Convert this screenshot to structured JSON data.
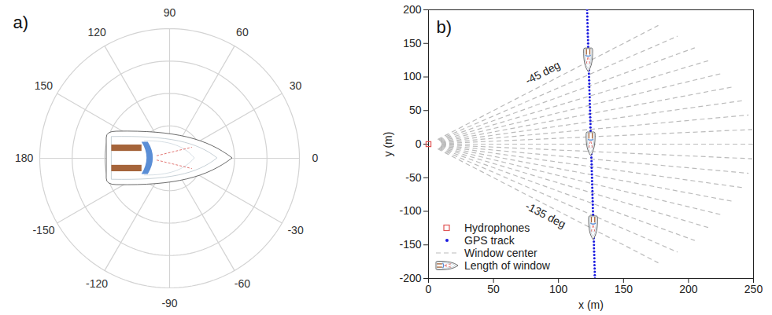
{
  "chart_data": [
    {
      "type": "polar",
      "title": "a)",
      "rlim": [
        0,
        1
      ],
      "rticks": [
        0.25,
        0.5,
        0.75,
        1
      ],
      "angle_ticks": [
        0,
        30,
        60,
        90,
        120,
        150,
        180,
        -150,
        -120,
        -90,
        -60,
        -30
      ],
      "grid": true,
      "marker": "boat"
    },
    {
      "type": "scatter",
      "title": "b)",
      "xlabel": "x (m)",
      "ylabel": "y (m)",
      "xlim": [
        0,
        250
      ],
      "ylim": [
        -200,
        200
      ],
      "xticks": [
        0,
        50,
        100,
        150,
        200,
        250
      ],
      "yticks": [
        -200,
        -150,
        -100,
        -50,
        0,
        50,
        100,
        150,
        200
      ],
      "legend": "lower left",
      "series": [
        {
          "name": "Hydrophones",
          "color": "#e05555",
          "marker": "square",
          "x": [
            0
          ],
          "y": [
            0
          ]
        },
        {
          "name": "GPS track",
          "color": "#1a1ae0",
          "marker": "dot",
          "x": [
            122.0,
            122.1,
            122.2,
            122.2,
            122.3,
            122.4,
            122.5,
            122.5,
            122.6,
            122.7,
            122.8,
            122.8,
            122.9,
            123.0,
            123.1,
            123.1,
            123.2,
            123.3,
            123.4,
            123.4,
            123.5,
            123.6,
            123.7,
            123.7,
            123.8,
            123.9,
            124.0,
            124.0,
            124.1,
            124.2,
            124.3,
            124.3,
            124.4,
            124.5,
            124.6,
            124.6,
            124.7,
            124.8,
            124.9,
            124.9,
            125.0,
            125.1,
            125.2,
            125.2,
            125.3,
            125.4,
            125.5,
            125.5,
            125.6,
            125.7,
            125.8,
            125.8,
            125.9,
            126.0,
            126.1,
            126.1,
            126.2,
            126.3,
            126.4,
            126.4,
            126.5,
            126.6,
            126.7,
            126.7,
            126.8,
            126.9,
            127.0,
            127.0,
            127.1,
            127.2,
            127.3,
            127.3,
            127.4,
            127.5,
            127.6,
            127.6,
            127.7,
            127.8,
            127.9,
            127.9,
            128.0
          ],
          "y": [
            200,
            195,
            190,
            185,
            180,
            175,
            170,
            165,
            160,
            155,
            150,
            145,
            140,
            135,
            130,
            125,
            120,
            115,
            110,
            105,
            100,
            95,
            90,
            85,
            80,
            75,
            70,
            65,
            60,
            55,
            50,
            45,
            40,
            35,
            30,
            25,
            20,
            15,
            10,
            5,
            0,
            -5,
            -10,
            -15,
            -20,
            -25,
            -30,
            -35,
            -40,
            -45,
            -50,
            -55,
            -60,
            -65,
            -70,
            -75,
            -80,
            -85,
            -90,
            -95,
            -100,
            -105,
            -110,
            -115,
            -120,
            -125,
            -130,
            -135,
            -140,
            -145,
            -150,
            -155,
            -160,
            -165,
            -170,
            -175,
            -180,
            -185,
            -190,
            -195,
            -200
          ]
        },
        {
          "name": "Window center",
          "type": "ray",
          "color": "#bbbbbb",
          "line_style": "dashed",
          "angles": [
            45,
            40,
            35,
            30,
            25,
            20,
            15,
            10,
            5,
            0,
            -5,
            -10,
            -15,
            -20,
            -25,
            -30,
            -35,
            -40,
            -45
          ],
          "r": [
            10,
            250
          ]
        },
        {
          "name": "Length of window",
          "marker": "boat",
          "x": [
            123.1,
            125.0,
            126.9
          ],
          "y": [
            125,
            0,
            -125
          ],
          "length": 35
        }
      ],
      "annotations": [
        {
          "text": "-45 deg",
          "x": 88,
          "y": 106
        },
        {
          "text": "-135 deg",
          "x": 90,
          "y": -106
        }
      ]
    }
  ]
}
